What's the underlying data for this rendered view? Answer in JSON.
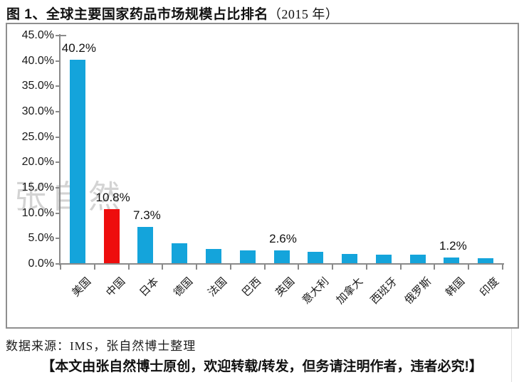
{
  "title": {
    "main": "图 1、全球主要国家药品市场规模占比排名",
    "year": "（2015 年）"
  },
  "watermark": "张自然",
  "source_note": "数据来源：IMS，张自然博士整理",
  "footer_note": "【本文由张自然博士原创，欢迎转载/转发，但务请注明作者，违者必究!】",
  "chart_data": {
    "type": "bar",
    "title": "全球主要国家药品市场规模占比排名（2015 年）",
    "categories": [
      "美国",
      "中国",
      "日本",
      "德国",
      "法国",
      "巴西",
      "英国",
      "意大利",
      "加拿大",
      "西班牙",
      "俄罗斯",
      "韩国",
      "印度"
    ],
    "values": [
      40.2,
      10.8,
      7.3,
      4.0,
      3.0,
      2.7,
      2.6,
      2.4,
      1.9,
      1.8,
      1.8,
      1.2,
      1.1
    ],
    "data_labels": [
      "40.2%",
      "10.8%",
      "7.3%",
      "",
      "",
      "",
      "2.6%",
      "",
      "",
      "",
      "",
      "1.2%",
      ""
    ],
    "y_ticks": [
      "45.0%",
      "40.0%",
      "35.0%",
      "30.0%",
      "25.0%",
      "20.0%",
      "15.0%",
      "10.0%",
      "5.0%",
      "0.0%"
    ],
    "ylim": [
      0,
      45
    ],
    "y_step": 5,
    "xlabel": "",
    "ylabel": "",
    "legend": "none",
    "grid": "off",
    "bar_color": "#14a4db",
    "highlight_color": "#ee0d0d",
    "highlight_index": 1,
    "axis_color": "#8a8a8a"
  }
}
